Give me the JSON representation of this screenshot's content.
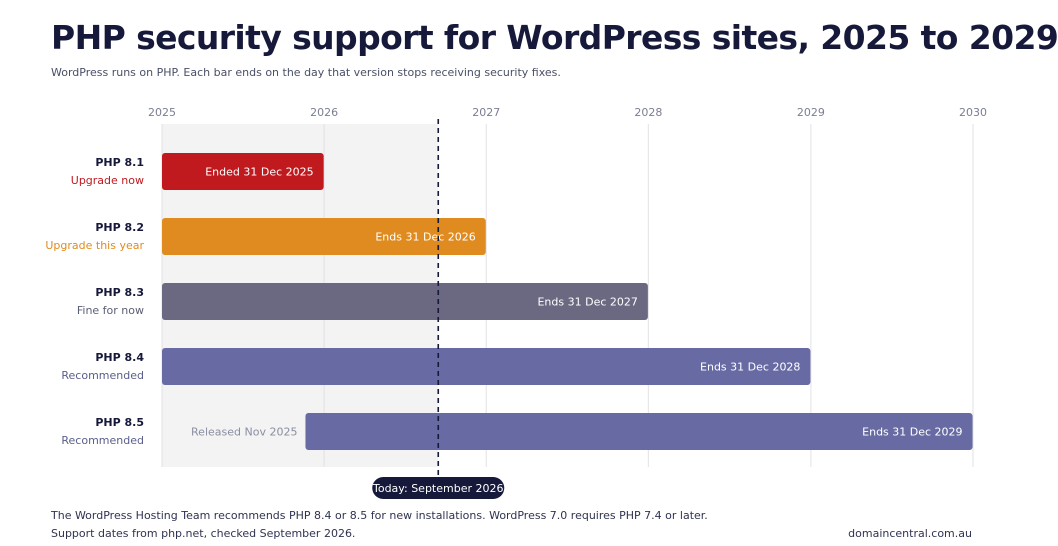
{
  "header": {
    "title": "PHP security support for WordPress sites, 2025 to 2029",
    "subtitle": "WordPress runs on PHP. Each bar ends on the day that version stops receiving security fixes."
  },
  "footer": {
    "note1": "The WordPress Hosting Team recommends PHP 8.4 or 8.5 for new installations. WordPress 7.0 requires PHP 7.4 or later.",
    "note2": "Support dates from php.net, checked September 2026.",
    "brand": "domaincentral.com.au"
  },
  "chart_data": {
    "type": "bar",
    "orientation": "horizontal",
    "x_axis": {
      "type": "time",
      "range": [
        "2025-01-01",
        "2030-01-01"
      ],
      "ticks": [
        "2025",
        "2026",
        "2027",
        "2028",
        "2029",
        "2030"
      ],
      "position": "top",
      "grid": true
    },
    "today": {
      "date": "2026-09",
      "label": "Today: September 2026"
    },
    "past_shaded": true,
    "rows": [
      {
        "version": "PHP 8.1",
        "status": "Upgrade now",
        "status_color": "#c0191e",
        "start": "2025-01-01",
        "end": "2025-12-31",
        "bar_label": "Ended 31 Dec 2025",
        "color": "#c0191e"
      },
      {
        "version": "PHP 8.2",
        "status": "Upgrade this year",
        "status_color": "#e08b1f",
        "start": "2025-01-01",
        "end": "2026-12-31",
        "bar_label": "Ends 31 Dec 2026",
        "color": "#e08b1f"
      },
      {
        "version": "PHP 8.3",
        "status": "Fine for now",
        "status_color": "#5a5e72",
        "start": "2025-01-01",
        "end": "2027-12-31",
        "bar_label": "Ends 31 Dec 2027",
        "color": "#6b6881"
      },
      {
        "version": "PHP 8.4",
        "status": "Recommended",
        "status_color": "#5a5e8a",
        "start": "2025-01-01",
        "end": "2028-12-31",
        "bar_label": "Ends 31 Dec 2028",
        "color": "#686ba3"
      },
      {
        "version": "PHP 8.5",
        "status": "Recommended",
        "status_color": "#5a5e8a",
        "start": "2025-11-20",
        "end": "2029-12-31",
        "bar_label": "Ends 31 Dec 2029",
        "color": "#686ba3",
        "release_label": "Released Nov 2025"
      }
    ]
  }
}
